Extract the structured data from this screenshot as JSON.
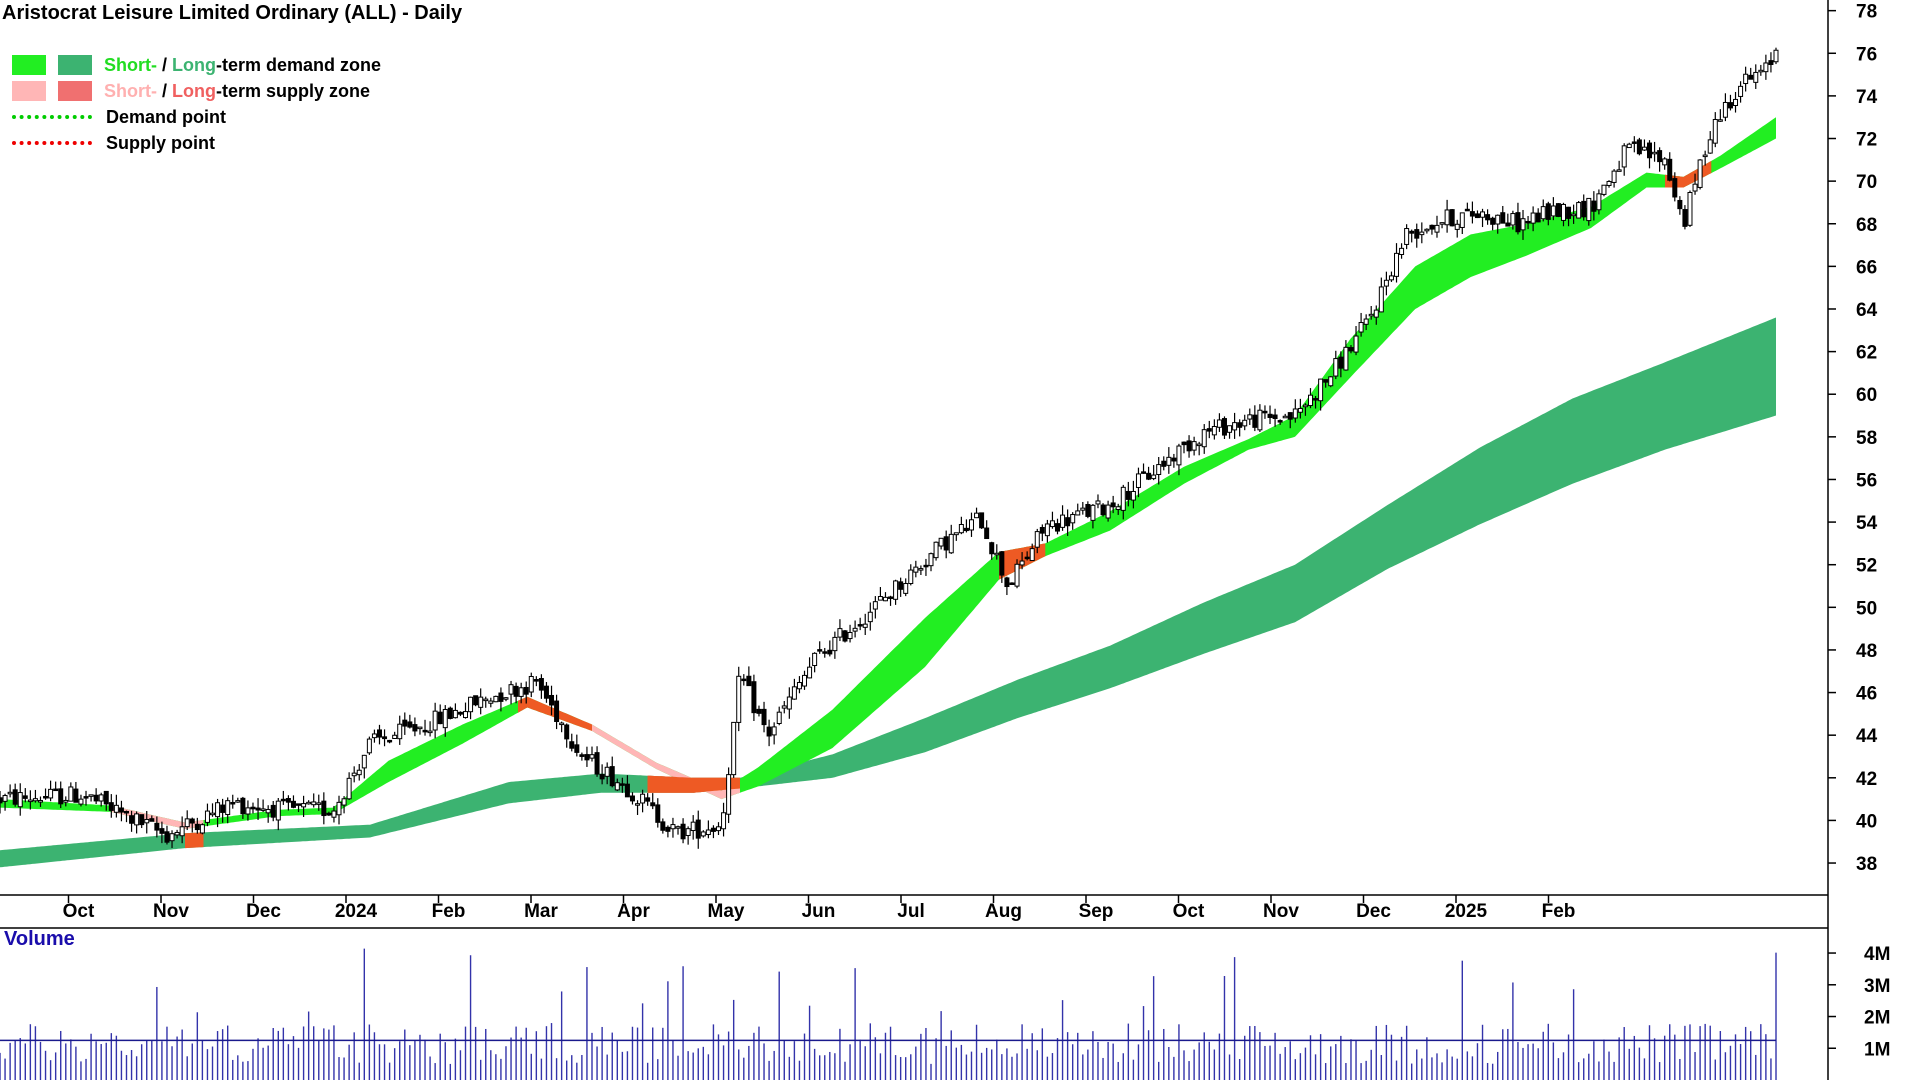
{
  "chart_title": "Aristocrat Leisure Limited Ordinary (ALL) - Daily",
  "legend": {
    "demand_zone": {
      "short": "Short-",
      "sep": " / ",
      "long": "Long",
      "rest": "-term demand zone"
    },
    "supply_zone": {
      "short": "Short-",
      "sep": " / ",
      "long": "Long",
      "rest": "-term supply zone"
    },
    "demand_point": "Demand point",
    "supply_point": "Supply point"
  },
  "colors": {
    "short_demand": "#22ee22",
    "long_demand": "#3cb371",
    "short_supply": "#ffb6b6",
    "long_supply": "#f07050",
    "long_supply_strong": "#ee5a24",
    "demand_point": "#00cc00",
    "supply_point": "#ee0000",
    "volume": "#3333aa",
    "volume_avg": "#1a1a8c",
    "volume_label": "#1a0dab"
  },
  "volume_panel": {
    "label": "Volume",
    "ticks": [
      {
        "label": "1M",
        "value": 1
      },
      {
        "label": "2M",
        "value": 2
      },
      {
        "label": "3M",
        "value": 3
      },
      {
        "label": "4M",
        "value": 4
      }
    ]
  },
  "chart_data": {
    "type": "candlestick",
    "period": "Daily",
    "ylim": [
      36.5,
      78.5
    ],
    "y_ticks": [
      38,
      40,
      42,
      44,
      46,
      48,
      50,
      52,
      54,
      56,
      58,
      60,
      62,
      64,
      66,
      68,
      70,
      72,
      74,
      76,
      78
    ],
    "x_ticks": [
      "Oct",
      "Nov",
      "Dec",
      "2024",
      "Feb",
      "Mar",
      "Apr",
      "May",
      "Jun",
      "Jul",
      "Aug",
      "Sep",
      "Oct",
      "Nov",
      "Dec",
      "2025",
      "Feb"
    ],
    "price_path": [
      {
        "m": 0,
        "p": 41.0
      },
      {
        "m": 0.9,
        "p": 41.2
      },
      {
        "m": 1.8,
        "p": 39.3
      },
      {
        "m": 2.5,
        "p": 40.8
      },
      {
        "m": 3.1,
        "p": 40.5
      },
      {
        "m": 3.6,
        "p": 40.5
      },
      {
        "m": 4.0,
        "p": 43.6
      },
      {
        "m": 4.6,
        "p": 44.5
      },
      {
        "m": 5.3,
        "p": 45.8
      },
      {
        "m": 5.8,
        "p": 46.5
      },
      {
        "m": 6.3,
        "p": 43.0
      },
      {
        "m": 6.8,
        "p": 41.5
      },
      {
        "m": 7.3,
        "p": 39.4
      },
      {
        "m": 7.8,
        "p": 39.8
      },
      {
        "m": 8.0,
        "p": 46.8
      },
      {
        "m": 8.3,
        "p": 44.0
      },
      {
        "m": 8.8,
        "p": 47.5
      },
      {
        "m": 9.5,
        "p": 50.2
      },
      {
        "m": 10.2,
        "p": 53.0
      },
      {
        "m": 10.6,
        "p": 54.2
      },
      {
        "m": 10.9,
        "p": 51.0
      },
      {
        "m": 11.3,
        "p": 53.8
      },
      {
        "m": 12.0,
        "p": 54.8
      },
      {
        "m": 12.5,
        "p": 56.5
      },
      {
        "m": 13.0,
        "p": 58.2
      },
      {
        "m": 13.5,
        "p": 58.8
      },
      {
        "m": 14.0,
        "p": 59.0
      },
      {
        "m": 14.4,
        "p": 61.0
      },
      {
        "m": 14.8,
        "p": 63.5
      },
      {
        "m": 15.2,
        "p": 67.5
      },
      {
        "m": 15.6,
        "p": 68.2
      },
      {
        "m": 16.0,
        "p": 68.5
      },
      {
        "m": 16.4,
        "p": 68.0
      },
      {
        "m": 16.8,
        "p": 68.6
      },
      {
        "m": 17.2,
        "p": 68.8
      },
      {
        "m": 17.6,
        "p": 71.5
      },
      {
        "m": 18.0,
        "p": 71.0
      },
      {
        "m": 18.2,
        "p": 68.0
      },
      {
        "m": 18.5,
        "p": 72.5
      },
      {
        "m": 18.8,
        "p": 74.5
      },
      {
        "m": 19.1,
        "p": 75.2
      },
      {
        "m": 19.2,
        "p": 76.2
      }
    ],
    "short_term_zone": [
      {
        "m": 0,
        "lo": 40.6,
        "hi": 41.0
      },
      {
        "m": 1.2,
        "lo": 40.4,
        "hi": 40.7
      },
      {
        "m": 2.0,
        "lo": 39.6,
        "hi": 39.9
      },
      {
        "m": 3.0,
        "lo": 40.2,
        "hi": 40.5
      },
      {
        "m": 3.6,
        "lo": 40.3,
        "hi": 40.6
      },
      {
        "m": 4.2,
        "lo": 41.8,
        "hi": 42.8
      },
      {
        "m": 5.0,
        "lo": 43.6,
        "hi": 44.5
      },
      {
        "m": 5.7,
        "lo": 45.3,
        "hi": 45.8
      },
      {
        "m": 6.4,
        "lo": 44.2,
        "hi": 44.5
      },
      {
        "m": 7.1,
        "lo": 42.4,
        "hi": 42.7
      },
      {
        "m": 7.8,
        "lo": 41.0,
        "hi": 41.4
      },
      {
        "m": 8.2,
        "lo": 41.6,
        "hi": 42.5
      },
      {
        "m": 9.0,
        "lo": 43.4,
        "hi": 45.2
      },
      {
        "m": 10.0,
        "lo": 47.2,
        "hi": 49.5
      },
      {
        "m": 10.8,
        "lo": 51.3,
        "hi": 52.6
      },
      {
        "m": 11.3,
        "lo": 52.4,
        "hi": 53.0
      },
      {
        "m": 12.0,
        "lo": 53.6,
        "hi": 54.5
      },
      {
        "m": 12.8,
        "lo": 55.8,
        "hi": 56.6
      },
      {
        "m": 13.5,
        "lo": 57.4,
        "hi": 57.9
      },
      {
        "m": 14.0,
        "lo": 58.0,
        "hi": 59.0
      },
      {
        "m": 14.6,
        "lo": 60.8,
        "hi": 62.6
      },
      {
        "m": 15.3,
        "lo": 64.0,
        "hi": 66.0
      },
      {
        "m": 15.9,
        "lo": 65.5,
        "hi": 67.5
      },
      {
        "m": 16.5,
        "lo": 66.5,
        "hi": 68.0
      },
      {
        "m": 17.2,
        "lo": 67.8,
        "hi": 68.8
      },
      {
        "m": 17.8,
        "lo": 69.7,
        "hi": 70.4
      },
      {
        "m": 18.2,
        "lo": 69.7,
        "hi": 70.2
      },
      {
        "m": 18.6,
        "lo": 70.6,
        "hi": 71.2
      },
      {
        "m": 19.2,
        "lo": 72.0,
        "hi": 73.0
      }
    ],
    "long_term_zone": [
      {
        "m": 0,
        "lo": 37.8,
        "hi": 38.6
      },
      {
        "m": 2.0,
        "lo": 38.7,
        "hi": 39.4
      },
      {
        "m": 4.0,
        "lo": 39.2,
        "hi": 39.8
      },
      {
        "m": 5.5,
        "lo": 40.8,
        "hi": 41.8
      },
      {
        "m": 6.5,
        "lo": 41.3,
        "hi": 42.2
      },
      {
        "m": 7.5,
        "lo": 41.3,
        "hi": 42.0
      },
      {
        "m": 8.0,
        "lo": 41.5,
        "hi": 42.0
      },
      {
        "m": 9.0,
        "lo": 42.0,
        "hi": 43.1
      },
      {
        "m": 10.0,
        "lo": 43.2,
        "hi": 44.8
      },
      {
        "m": 11.0,
        "lo": 44.8,
        "hi": 46.6
      },
      {
        "m": 12.0,
        "lo": 46.2,
        "hi": 48.2
      },
      {
        "m": 13.0,
        "lo": 47.8,
        "hi": 50.2
      },
      {
        "m": 14.0,
        "lo": 49.3,
        "hi": 52.0
      },
      {
        "m": 15.0,
        "lo": 51.8,
        "hi": 54.8
      },
      {
        "m": 16.0,
        "lo": 53.9,
        "hi": 57.5
      },
      {
        "m": 17.0,
        "lo": 55.8,
        "hi": 59.8
      },
      {
        "m": 18.0,
        "lo": 57.4,
        "hi": 61.5
      },
      {
        "m": 19.2,
        "lo": 59.0,
        "hi": 63.6
      }
    ],
    "short_supply_segments": [
      [
        1.2,
        2.2
      ],
      [
        6.3,
        8.0
      ]
    ],
    "long_supply_segments": [
      [
        2.0,
        2.2
      ],
      [
        7.0,
        8.0
      ]
    ],
    "short_demand_supply_segments": [
      [
        5.6,
        6.4
      ],
      [
        10.8,
        11.3
      ],
      [
        18.0,
        18.5
      ]
    ],
    "volume_average_millions": 1.25
  }
}
